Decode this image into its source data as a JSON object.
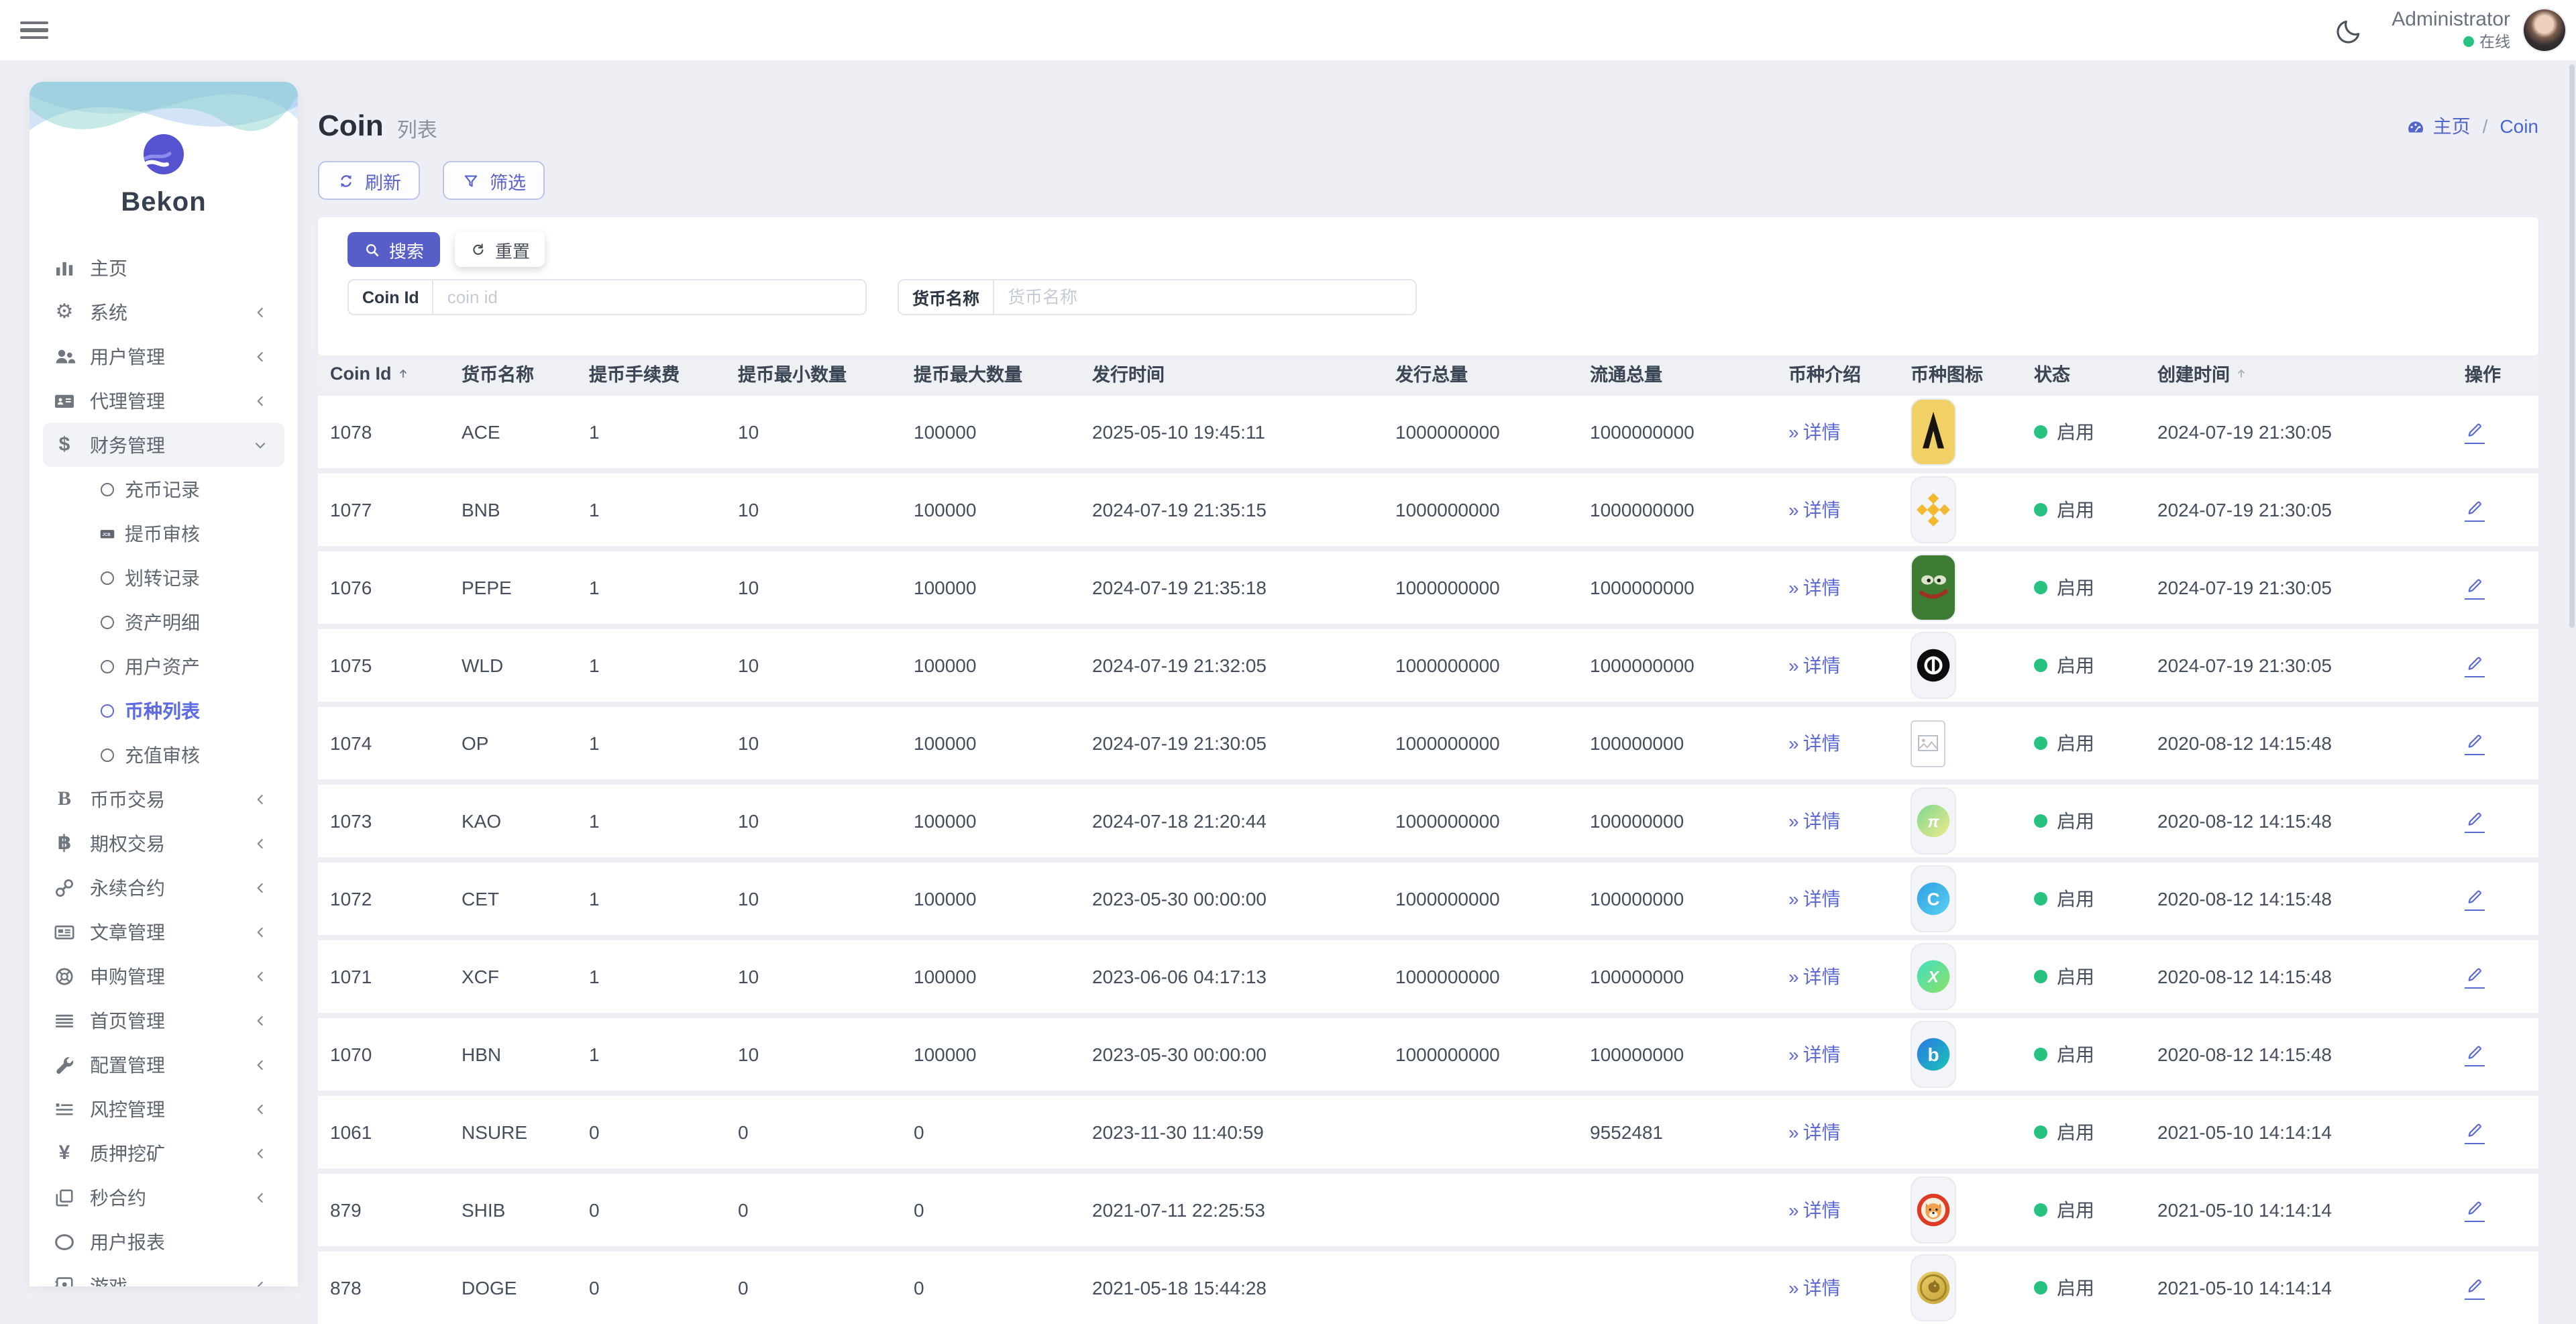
{
  "topbar": {
    "user_name": "Administrator",
    "status": "在线"
  },
  "sidebar": {
    "logo_text": "Bekon",
    "items": [
      {
        "key": "home",
        "label": "主页",
        "icon": "bar-chart",
        "chevron": null
      },
      {
        "key": "system",
        "label": "系统",
        "icon": "gear",
        "chevron": "left"
      },
      {
        "key": "user-management",
        "label": "用户管理",
        "icon": "users",
        "chevron": "left"
      },
      {
        "key": "agent-management",
        "label": "代理管理",
        "icon": "id-card",
        "chevron": "left"
      },
      {
        "key": "finance-management",
        "label": "财务管理",
        "icon": "dollar",
        "chevron": "down",
        "open": true,
        "children": [
          {
            "key": "deposit-records",
            "label": "充币记录",
            "icon": "circle"
          },
          {
            "key": "withdraw-audit",
            "label": "提币审核",
            "icon": "card"
          },
          {
            "key": "transfer-records",
            "label": "划转记录",
            "icon": "circle"
          },
          {
            "key": "asset-details",
            "label": "资产明细",
            "icon": "circle"
          },
          {
            "key": "user-assets",
            "label": "用户资产",
            "icon": "circle"
          },
          {
            "key": "coin-list",
            "label": "币种列表",
            "icon": "circle",
            "active": true
          },
          {
            "key": "recharge-audit",
            "label": "充值审核",
            "icon": "circle"
          }
        ]
      },
      {
        "key": "spot-trading",
        "label": "币币交易",
        "icon": "b-serif",
        "chevron": "left"
      },
      {
        "key": "options-trading",
        "label": "期权交易",
        "icon": "baht",
        "chevron": "left"
      },
      {
        "key": "perpetual-contract",
        "label": "永续合约",
        "icon": "link",
        "chevron": "left"
      },
      {
        "key": "article-management",
        "label": "文章管理",
        "icon": "newspaper",
        "chevron": "left"
      },
      {
        "key": "subscription-management",
        "label": "申购管理",
        "icon": "life-ring",
        "chevron": "left"
      },
      {
        "key": "homepage-management",
        "label": "首页管理",
        "icon": "lines",
        "chevron": "left"
      },
      {
        "key": "config-management",
        "label": "配置管理",
        "icon": "wrench",
        "chevron": "left"
      },
      {
        "key": "risk-management",
        "label": "风控管理",
        "icon": "list-indent",
        "chevron": "left"
      },
      {
        "key": "staking-mining",
        "label": "质押挖矿",
        "icon": "yen",
        "chevron": "left"
      },
      {
        "key": "second-contract",
        "label": "秒合约",
        "icon": "clone",
        "chevron": "left"
      },
      {
        "key": "user-report",
        "label": "用户报表",
        "icon": "ellipse",
        "chevron": null
      },
      {
        "key": "games",
        "label": "游戏",
        "icon": "address-book",
        "chevron": "left"
      }
    ]
  },
  "page": {
    "title": "Coin",
    "subtitle": "列表",
    "breadcrumb": {
      "home": "主页",
      "sep": "/",
      "current": "Coin"
    },
    "refresh_label": "刷新",
    "filter_label": "筛选",
    "search_label": "搜索",
    "reset_label": "重置",
    "fields": [
      {
        "key": "coin-id",
        "label": "Coin Id",
        "placeholder": "coin id",
        "value": ""
      },
      {
        "key": "coin-name",
        "label": "货币名称",
        "placeholder": "货币名称",
        "value": ""
      }
    ]
  },
  "table": {
    "columns": [
      {
        "key": "id",
        "label": "Coin Id",
        "sort": "dark"
      },
      {
        "key": "name",
        "label": "货币名称",
        "sort": null
      },
      {
        "key": "fee",
        "label": "提币手续费",
        "sort": null
      },
      {
        "key": "min",
        "label": "提币最小数量",
        "sort": null
      },
      {
        "key": "max",
        "label": "提币最大数量",
        "sort": null
      },
      {
        "key": "issued_at",
        "label": "发行时间",
        "sort": null
      },
      {
        "key": "total_supply",
        "label": "发行总量",
        "sort": null
      },
      {
        "key": "circulating_supply",
        "label": "流通总量",
        "sort": null
      },
      {
        "key": "intro",
        "label": "币种介绍",
        "sort": null
      },
      {
        "key": "icon",
        "label": "币种图标",
        "sort": null
      },
      {
        "key": "status",
        "label": "状态",
        "sort": null
      },
      {
        "key": "created_at",
        "label": "创建时间",
        "sort": "grey"
      },
      {
        "key": "action",
        "label": "操作",
        "sort": null
      }
    ],
    "detail_label": "详情",
    "status_enabled": "启用",
    "rows": [
      {
        "id": "1078",
        "name": "ACE",
        "fee": "1",
        "min": "10",
        "max": "100000",
        "issued_at": "2025-05-10 19:45:11",
        "total_supply": "1000000000",
        "circulating_supply": "1000000000",
        "icon": "ace",
        "created_at": "2024-07-19 21:30:05"
      },
      {
        "id": "1077",
        "name": "BNB",
        "fee": "1",
        "min": "10",
        "max": "100000",
        "issued_at": "2024-07-19 21:35:15",
        "total_supply": "1000000000",
        "circulating_supply": "1000000000",
        "icon": "bnb",
        "created_at": "2024-07-19 21:30:05"
      },
      {
        "id": "1076",
        "name": "PEPE",
        "fee": "1",
        "min": "10",
        "max": "100000",
        "issued_at": "2024-07-19 21:35:18",
        "total_supply": "1000000000",
        "circulating_supply": "1000000000",
        "icon": "pepe",
        "created_at": "2024-07-19 21:30:05"
      },
      {
        "id": "1075",
        "name": "WLD",
        "fee": "1",
        "min": "10",
        "max": "100000",
        "issued_at": "2024-07-19 21:32:05",
        "total_supply": "1000000000",
        "circulating_supply": "1000000000",
        "icon": "wld",
        "created_at": "2024-07-19 21:30:05"
      },
      {
        "id": "1074",
        "name": "OP",
        "fee": "1",
        "min": "10",
        "max": "100000",
        "issued_at": "2024-07-19 21:30:05",
        "total_supply": "1000000000",
        "circulating_supply": "100000000",
        "icon": "broken",
        "created_at": "2020-08-12 14:15:48"
      },
      {
        "id": "1073",
        "name": "KAO",
        "fee": "1",
        "min": "10",
        "max": "100000",
        "issued_at": "2024-07-18 21:20:44",
        "total_supply": "1000000000",
        "circulating_supply": "100000000",
        "icon": "kao",
        "created_at": "2020-08-12 14:15:48"
      },
      {
        "id": "1072",
        "name": "CET",
        "fee": "1",
        "min": "10",
        "max": "100000",
        "issued_at": "2023-05-30 00:00:00",
        "total_supply": "1000000000",
        "circulating_supply": "100000000",
        "icon": "cet",
        "created_at": "2020-08-12 14:15:48"
      },
      {
        "id": "1071",
        "name": "XCF",
        "fee": "1",
        "min": "10",
        "max": "100000",
        "issued_at": "2023-06-06 04:17:13",
        "total_supply": "1000000000",
        "circulating_supply": "100000000",
        "icon": "xcf",
        "created_at": "2020-08-12 14:15:48"
      },
      {
        "id": "1070",
        "name": "HBN",
        "fee": "1",
        "min": "10",
        "max": "100000",
        "issued_at": "2023-05-30 00:00:00",
        "total_supply": "1000000000",
        "circulating_supply": "100000000",
        "icon": "hbn",
        "created_at": "2020-08-12 14:15:48"
      },
      {
        "id": "1061",
        "name": "NSURE",
        "fee": "0",
        "min": "0",
        "max": "0",
        "issued_at": "2023-11-30 11:40:59",
        "total_supply": "",
        "circulating_supply": "9552481",
        "icon": "none",
        "created_at": "2021-05-10 14:14:14"
      },
      {
        "id": "879",
        "name": "SHIB",
        "fee": "0",
        "min": "0",
        "max": "0",
        "issued_at": "2021-07-11 22:25:53",
        "total_supply": "",
        "circulating_supply": "",
        "icon": "shib",
        "created_at": "2021-05-10 14:14:14"
      },
      {
        "id": "878",
        "name": "DOGE",
        "fee": "0",
        "min": "0",
        "max": "0",
        "issued_at": "2021-05-18 15:44:28",
        "total_supply": "",
        "circulating_supply": "",
        "icon": "doge",
        "created_at": "2021-05-10 14:14:14"
      }
    ]
  },
  "colors": {
    "accent": "#5a61c9",
    "primary_button": "#575ec8",
    "link": "#5b69d6",
    "success": "#26c281",
    "logo": "#5553cf",
    "binance_gold": "#f3ba2f"
  }
}
